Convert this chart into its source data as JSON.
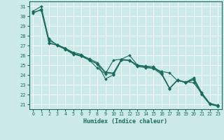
{
  "xlabel": "Humidex (Indice chaleur)",
  "xlim": [
    -0.5,
    23.5
  ],
  "ylim": [
    20.5,
    31.5
  ],
  "yticks": [
    21,
    22,
    23,
    24,
    25,
    26,
    27,
    28,
    29,
    30,
    31
  ],
  "xticks": [
    0,
    1,
    2,
    3,
    4,
    5,
    6,
    7,
    8,
    9,
    10,
    11,
    12,
    13,
    14,
    15,
    16,
    17,
    18,
    19,
    20,
    21,
    22,
    23
  ],
  "bg_color": "#cceae7",
  "line_color": "#1a6b5e",
  "grid_color": "#ffffff",
  "lines": [
    {
      "x": [
        0,
        1,
        2,
        3,
        4,
        5,
        6,
        7,
        8,
        9,
        10,
        11,
        12,
        13,
        14,
        15,
        16,
        17,
        18,
        19,
        20,
        21,
        22,
        23
      ],
      "y": [
        30.5,
        31.0,
        27.5,
        27.1,
        26.7,
        26.3,
        26.1,
        25.5,
        24.7,
        24.1,
        25.5,
        25.6,
        26.0,
        25.0,
        24.9,
        24.85,
        24.15,
        22.65,
        23.5,
        23.25,
        23.7,
        22.2,
        21.1,
        20.85
      ]
    },
    {
      "x": [
        0,
        1,
        2,
        3,
        4,
        5,
        6,
        7,
        8,
        9,
        10,
        11,
        12,
        13,
        14,
        15,
        16,
        17,
        18,
        19,
        20,
        21,
        22,
        23
      ],
      "y": [
        30.3,
        30.7,
        27.2,
        27.05,
        26.75,
        26.2,
        26.0,
        25.65,
        25.25,
        24.3,
        24.2,
        25.6,
        25.5,
        25.0,
        24.85,
        24.7,
        24.35,
        24.2,
        23.4,
        23.3,
        23.2,
        22.1,
        21.1,
        20.9
      ]
    },
    {
      "x": [
        2,
        3,
        4,
        5,
        6,
        7,
        8,
        9,
        10,
        11,
        12,
        13,
        14,
        15,
        16,
        17,
        18,
        19,
        20,
        21,
        22,
        23
      ],
      "y": [
        27.7,
        27.0,
        26.6,
        26.1,
        25.9,
        25.5,
        25.15,
        23.6,
        24.0,
        25.5,
        25.5,
        24.85,
        24.75,
        24.65,
        24.05,
        22.6,
        23.5,
        23.2,
        23.6,
        22.05,
        21.05,
        20.85
      ]
    },
    {
      "x": [
        0,
        1,
        2,
        3,
        4,
        5,
        6,
        7,
        8,
        9,
        10,
        11,
        12,
        13,
        14,
        15,
        16,
        17,
        18,
        19,
        20,
        21,
        22,
        23
      ],
      "y": [
        30.4,
        30.6,
        27.3,
        27.0,
        26.65,
        26.15,
        25.95,
        25.55,
        25.1,
        24.2,
        24.1,
        25.55,
        25.45,
        24.9,
        24.8,
        24.7,
        24.2,
        22.6,
        23.45,
        23.2,
        23.5,
        22.0,
        21.0,
        20.8
      ]
    }
  ]
}
